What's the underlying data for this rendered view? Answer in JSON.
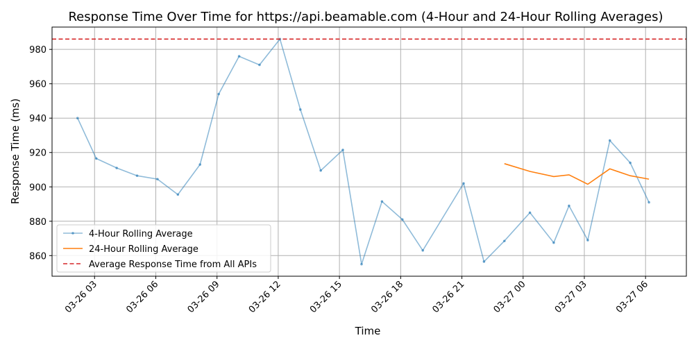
{
  "chart_data": {
    "type": "line",
    "title": "Response Time Over Time for https://api.beamable.com (4-Hour and 24-Hour Rolling Averages)",
    "xlabel": "Time",
    "ylabel": "Response Time (ms)",
    "xlim": [
      "2024-03-26 00:55",
      "2024-03-27 08:00"
    ],
    "ylim": [
      848,
      993
    ],
    "x_ticks": [
      {
        "value": "2024-03-26 03:00",
        "label": "03-26 03"
      },
      {
        "value": "2024-03-26 06:00",
        "label": "03-26 06"
      },
      {
        "value": "2024-03-26 09:00",
        "label": "03-26 09"
      },
      {
        "value": "2024-03-26 12:00",
        "label": "03-26 12"
      },
      {
        "value": "2024-03-26 15:00",
        "label": "03-26 15"
      },
      {
        "value": "2024-03-26 18:00",
        "label": "03-26 18"
      },
      {
        "value": "2024-03-26 21:00",
        "label": "03-26 21"
      },
      {
        "value": "2024-03-27 00:00",
        "label": "03-27 00"
      },
      {
        "value": "2024-03-27 03:00",
        "label": "03-27 03"
      },
      {
        "value": "2024-03-27 06:00",
        "label": "03-27 06"
      }
    ],
    "y_ticks": [
      860,
      880,
      900,
      920,
      940,
      960,
      980
    ],
    "grid": true,
    "legend_position": "bottom-left",
    "series": [
      {
        "name": "4-Hour Rolling Average",
        "color": "#1f77b4",
        "style": "line-with-dot-markers",
        "x": [
          "2024-03-26 02:10",
          "2024-03-26 03:05",
          "2024-03-26 04:05",
          "2024-03-26 05:05",
          "2024-03-26 06:05",
          "2024-03-26 07:05",
          "2024-03-26 08:10",
          "2024-03-26 09:05",
          "2024-03-26 10:05",
          "2024-03-26 11:05",
          "2024-03-26 12:05",
          "2024-03-26 13:05",
          "2024-03-26 14:05",
          "2024-03-26 15:10",
          "2024-03-26 16:05",
          "2024-03-26 17:05",
          "2024-03-26 18:05",
          "2024-03-26 19:05",
          "2024-03-26 21:05",
          "2024-03-26 22:05",
          "2024-03-26 23:05",
          "2024-03-27 00:20",
          "2024-03-27 01:30",
          "2024-03-27 02:15",
          "2024-03-27 03:10",
          "2024-03-27 04:15",
          "2024-03-27 05:15",
          "2024-03-27 06:10"
        ],
        "values": [
          940,
          916.5,
          911,
          906.5,
          904.5,
          895.5,
          913,
          954,
          976,
          971,
          986,
          945,
          909.5,
          921.5,
          855,
          891.5,
          881,
          863,
          902,
          856.5,
          868.5,
          885,
          867.5,
          889,
          869,
          927,
          914,
          891
        ]
      },
      {
        "name": "24-Hour Rolling Average",
        "color": "#ff7f0e",
        "style": "line",
        "x": [
          "2024-03-26 23:05",
          "2024-03-27 00:20",
          "2024-03-27 01:30",
          "2024-03-27 02:15",
          "2024-03-27 03:10",
          "2024-03-27 04:15",
          "2024-03-27 05:15",
          "2024-03-27 06:10"
        ],
        "values": [
          913.5,
          909,
          906,
          907,
          901.5,
          910.5,
          906.5,
          904.5
        ]
      },
      {
        "name": "Average Response Time from All APIs",
        "color": "#d62728",
        "style": "dashed-horizontal",
        "values": [
          986
        ]
      }
    ]
  }
}
